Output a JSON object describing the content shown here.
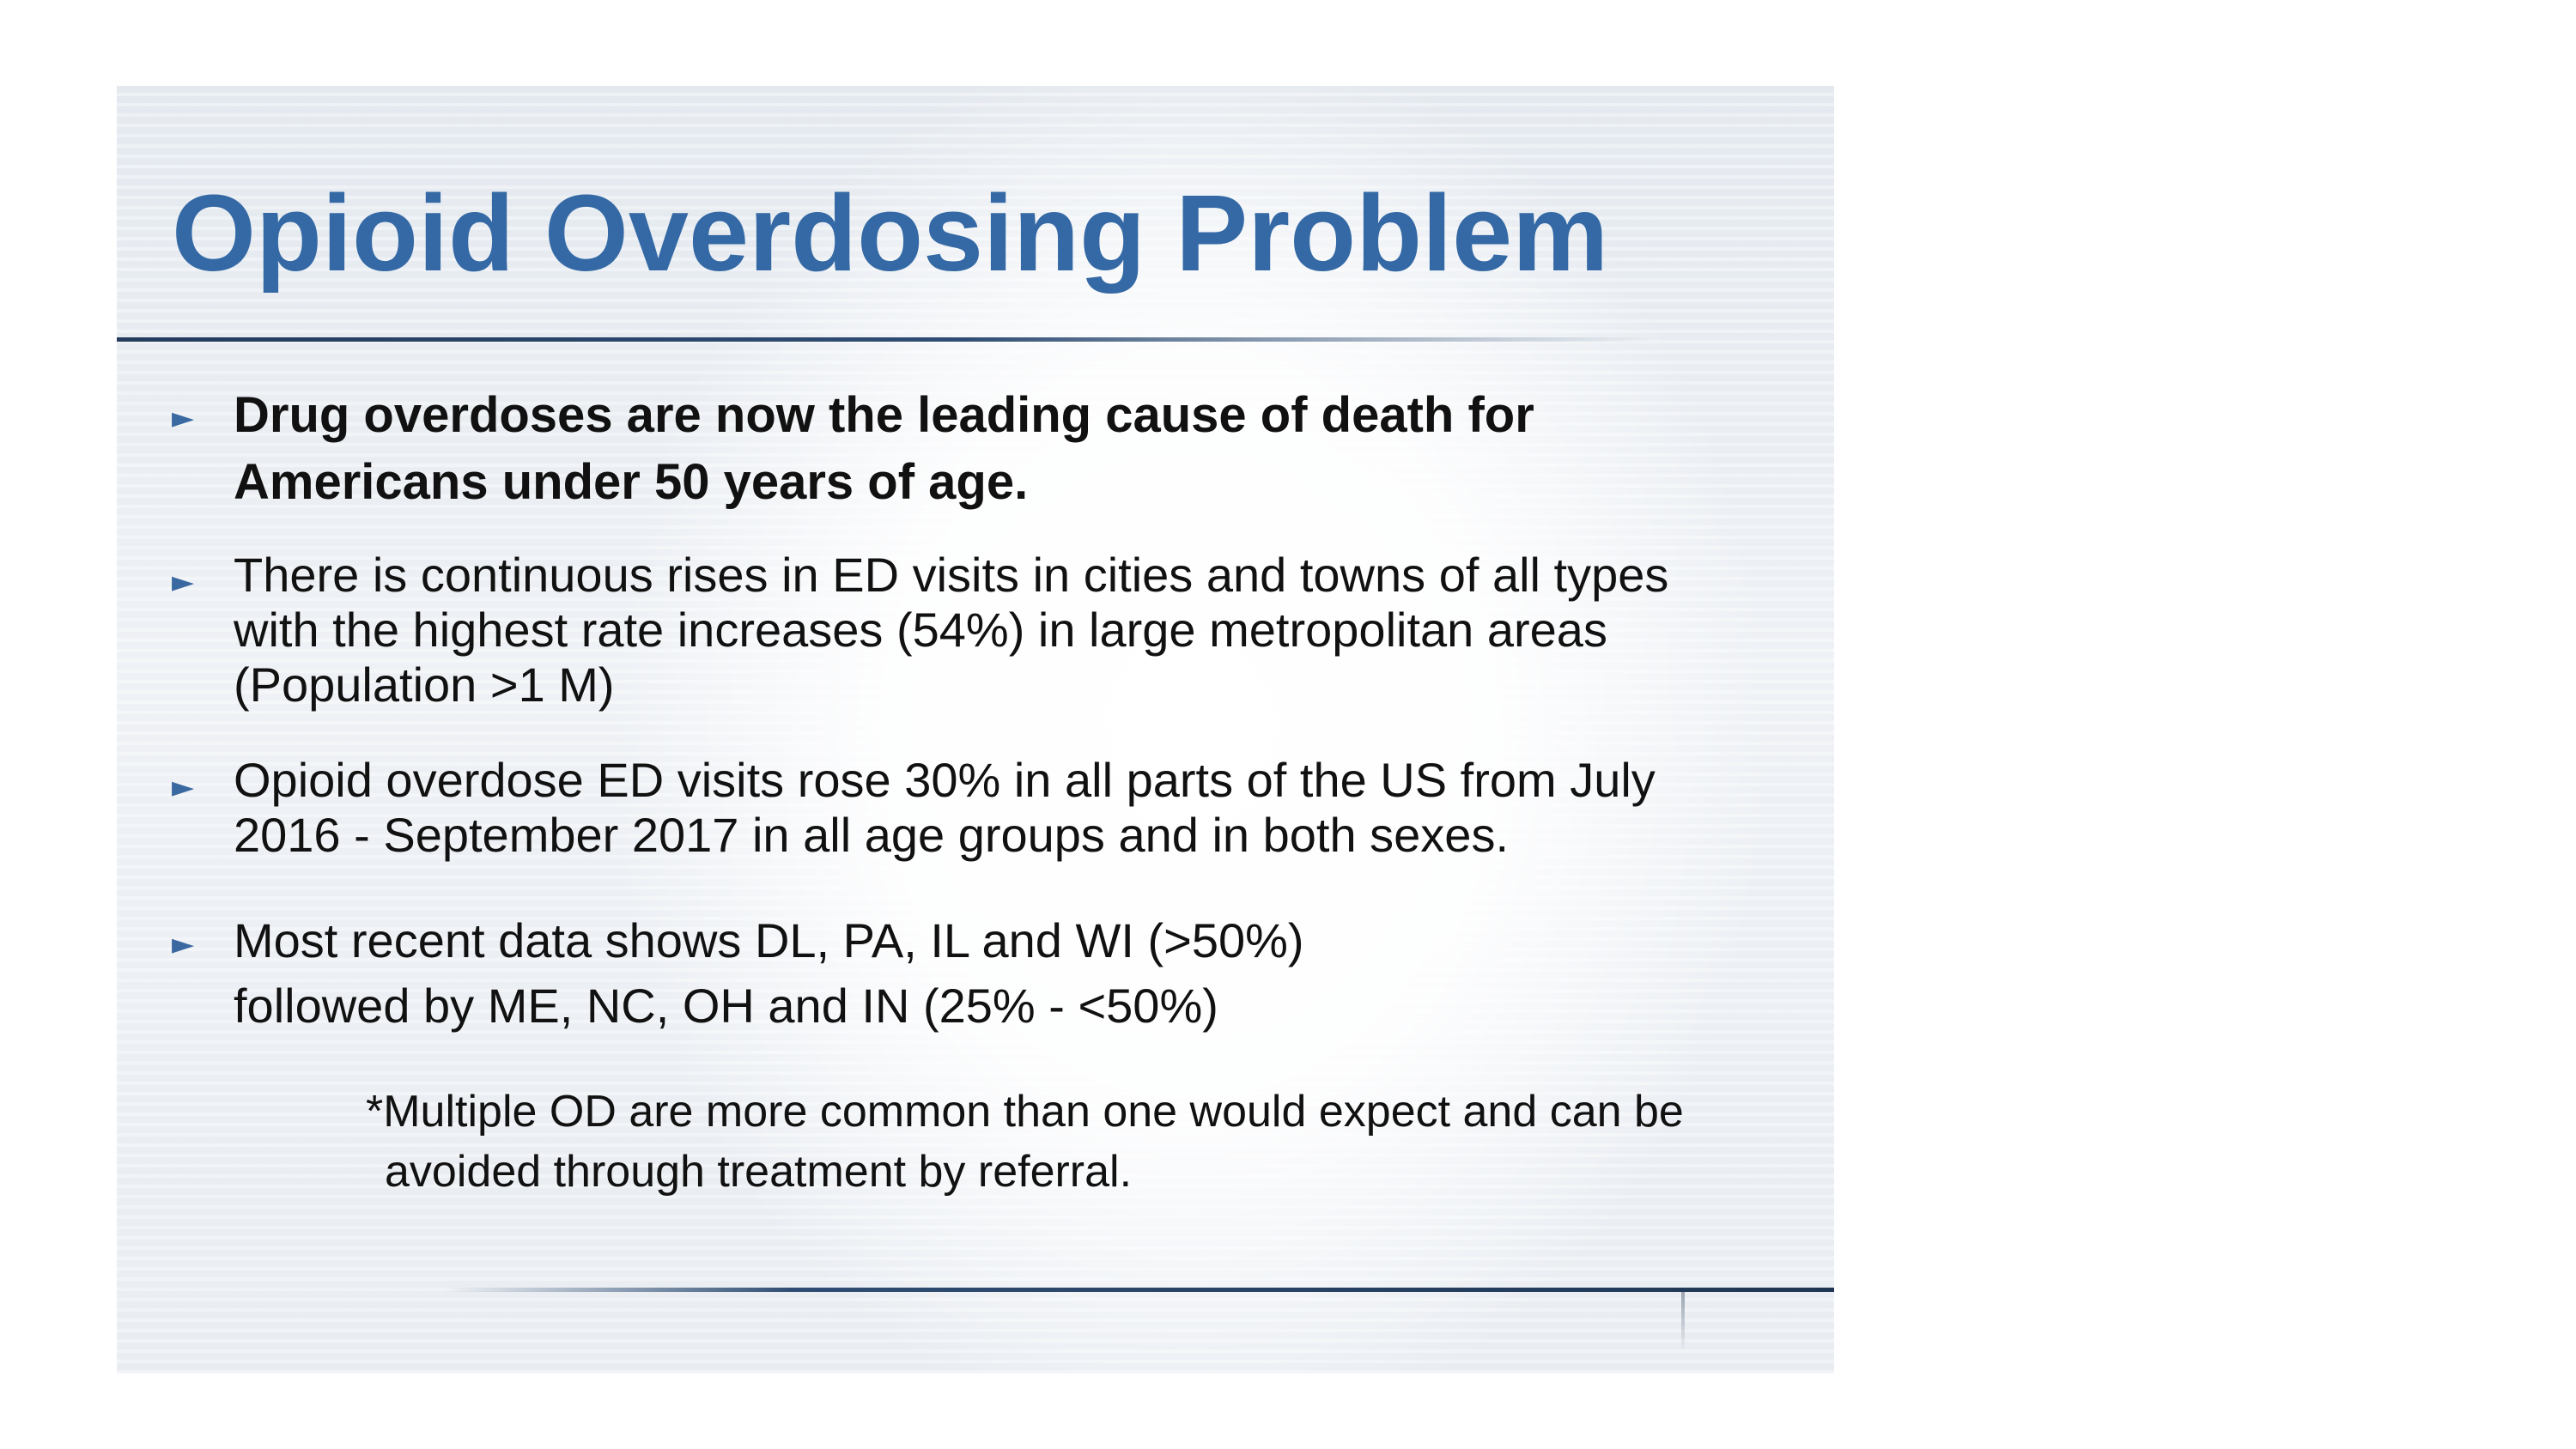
{
  "slide": {
    "title": "Opioid Overdosing Problem",
    "bullet_marker": "►",
    "bullets": [
      {
        "lines": [
          "Drug overdoses are now the leading cause of death for",
          "Americans under 50 years of age."
        ]
      },
      {
        "lines": [
          "There is continuous rises in ED visits in cities and towns of  all types",
          "with the highest rate increases (54%) in large  metropolitan areas",
          "(Population >1 M)"
        ]
      },
      {
        "lines": [
          "Opioid overdose ED visits rose 30% in all parts of the US  from July",
          "2016 - September 2017 in all age groups and in  both sexes."
        ]
      },
      {
        "lines": [
          "Most recent data shows DL, PA, IL and WI (>50%)",
          "followed by ME, NC, OH and IN (25% - <50%)"
        ]
      }
    ],
    "note": {
      "lines": [
        "*Multiple OD are more common than one would expect  and can be",
        "avoided through treatment by referral."
      ]
    }
  },
  "colors": {
    "title": "#3469a5",
    "marker": "#3a68a0",
    "rule": "#2f4d73",
    "text": "#111111"
  }
}
